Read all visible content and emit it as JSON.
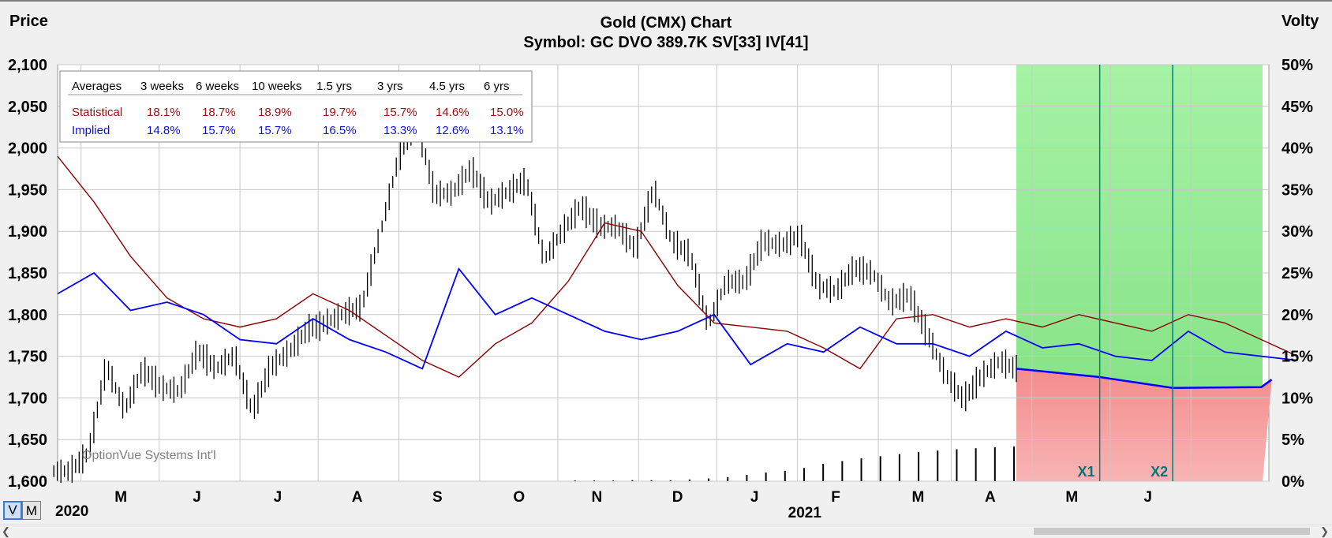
{
  "header": {
    "left_axis_label": "Price",
    "right_axis_label": "Volty",
    "title": "Gold (CMX) Chart",
    "subtitle": "Symbol: GC  DVO 389.7K  SV[33]  IV[41]"
  },
  "watermark": "OptionVue Systems Int'l",
  "mode_buttons": [
    {
      "label": "V",
      "active": true
    },
    {
      "label": "M",
      "active": false
    }
  ],
  "averages_table": {
    "header": [
      "Averages",
      "3 weeks",
      "6 weeks",
      "10 weeks",
      "1.5 yrs",
      "3 yrs",
      "4.5 yrs",
      "6 yrs"
    ],
    "rows": [
      {
        "label": "Statistical",
        "color": "#a01010",
        "values": [
          "18.1%",
          "18.7%",
          "18.9%",
          "19.7%",
          "15.7%",
          "14.6%",
          "15.0%"
        ]
      },
      {
        "label": "Implied",
        "color": "#1010e0",
        "values": [
          "14.8%",
          "15.7%",
          "15.7%",
          "16.5%",
          "13.3%",
          "12.6%",
          "13.1%"
        ]
      }
    ]
  },
  "colors": {
    "price_bars": "#000000",
    "statistical_vol": "#8b0000",
    "implied_vol": "#0000ff",
    "forecast_up": "#90ee90",
    "forecast_down": "#f4a0a0",
    "expiration_line": "#008080",
    "grid": "#c8c8c8"
  },
  "chart_data": {
    "type": "line",
    "title": "Gold (CMX) Chart",
    "subtitle": "Symbol: GC  DVO 389.7K  SV[33]  IV[41]",
    "left_axis": {
      "label": "Price",
      "range": [
        1600,
        2100
      ],
      "ticks": [
        "1,600",
        "1,650",
        "1,700",
        "1,750",
        "1,800",
        "1,850",
        "1,900",
        "1,950",
        "2,000",
        "2,050",
        "2,100"
      ]
    },
    "right_axis": {
      "label": "Volty",
      "range": [
        0,
        50
      ],
      "ticks": [
        "0%",
        "5%",
        "10%",
        "15%",
        "20%",
        "25%",
        "30%",
        "35%",
        "40%",
        "45%",
        "50%"
      ]
    },
    "x_axis": {
      "month_labels": [
        "M",
        "J",
        "J",
        "A",
        "S",
        "O",
        "N",
        "D",
        "J",
        "F",
        "M",
        "A",
        "M",
        "J"
      ],
      "year_labels": [
        "2020",
        "2021"
      ],
      "start": "2020-03-23",
      "last_data": "2021-03-26",
      "end": "2021-07-02"
    },
    "grid": true,
    "expirations": [
      {
        "label": "X1",
        "date": "2021-04-27"
      },
      {
        "label": "X2",
        "date": "2021-05-25"
      }
    ],
    "series": [
      {
        "name": "Price",
        "kind": "weekly_close",
        "points": [
          [
            "2020-03-27",
            1612
          ],
          [
            "2020-04-03",
            1633
          ],
          [
            "2020-04-10",
            1738
          ],
          [
            "2020-04-17",
            1686
          ],
          [
            "2020-04-24",
            1735
          ],
          [
            "2020-05-01",
            1713
          ],
          [
            "2020-05-08",
            1708
          ],
          [
            "2020-05-15",
            1756
          ],
          [
            "2020-05-22",
            1735
          ],
          [
            "2020-05-29",
            1751
          ],
          [
            "2020-06-05",
            1684
          ],
          [
            "2020-06-12",
            1737
          ],
          [
            "2020-06-19",
            1755
          ],
          [
            "2020-06-26",
            1781
          ],
          [
            "2020-07-03",
            1790
          ],
          [
            "2020-07-10",
            1801
          ],
          [
            "2020-07-17",
            1810
          ],
          [
            "2020-07-24",
            1897
          ],
          [
            "2020-07-31",
            1986
          ],
          [
            "2020-08-07",
            2035
          ],
          [
            "2020-08-14",
            1944
          ],
          [
            "2020-08-21",
            1947
          ],
          [
            "2020-08-28",
            1975
          ],
          [
            "2020-09-04",
            1934
          ],
          [
            "2020-09-11",
            1947
          ],
          [
            "2020-09-18",
            1962
          ],
          [
            "2020-09-25",
            1866
          ],
          [
            "2020-10-02",
            1900
          ],
          [
            "2020-10-09",
            1930
          ],
          [
            "2020-10-16",
            1906
          ],
          [
            "2020-10-23",
            1905
          ],
          [
            "2020-10-30",
            1879
          ],
          [
            "2020-11-06",
            1951
          ],
          [
            "2020-11-13",
            1888
          ],
          [
            "2020-11-20",
            1872
          ],
          [
            "2020-11-27",
            1788
          ],
          [
            "2020-12-04",
            1840
          ],
          [
            "2020-12-11",
            1839
          ],
          [
            "2020-12-18",
            1888
          ],
          [
            "2020-12-25",
            1883
          ],
          [
            "2021-01-01",
            1895
          ],
          [
            "2021-01-08",
            1835
          ],
          [
            "2021-01-15",
            1828
          ],
          [
            "2021-01-22",
            1856
          ],
          [
            "2021-01-29",
            1850
          ],
          [
            "2021-02-05",
            1813
          ],
          [
            "2021-02-12",
            1824
          ],
          [
            "2021-02-19",
            1777
          ],
          [
            "2021-02-26",
            1728
          ],
          [
            "2021-03-05",
            1698
          ],
          [
            "2021-03-12",
            1727
          ],
          [
            "2021-03-19",
            1744
          ],
          [
            "2021-03-26",
            1733
          ]
        ]
      },
      {
        "name": "Statistical",
        "kind": "volatility_pct",
        "points": [
          [
            "2020-03-23",
            39.0
          ],
          [
            "2020-04-06",
            33.5
          ],
          [
            "2020-04-20",
            27.0
          ],
          [
            "2020-05-04",
            22.0
          ],
          [
            "2020-05-18",
            19.5
          ],
          [
            "2020-06-01",
            18.5
          ],
          [
            "2020-06-15",
            19.5
          ],
          [
            "2020-06-29",
            22.5
          ],
          [
            "2020-07-13",
            20.5
          ],
          [
            "2020-07-27",
            17.5
          ],
          [
            "2020-08-10",
            14.5
          ],
          [
            "2020-08-24",
            12.5
          ],
          [
            "2020-09-07",
            16.5
          ],
          [
            "2020-09-21",
            19.0
          ],
          [
            "2020-10-05",
            24.0
          ],
          [
            "2020-10-19",
            31.0
          ],
          [
            "2020-11-02",
            30.0
          ],
          [
            "2020-11-16",
            23.5
          ],
          [
            "2020-11-30",
            19.0
          ],
          [
            "2020-12-14",
            18.5
          ],
          [
            "2020-12-28",
            18.0
          ],
          [
            "2021-01-11",
            16.0
          ],
          [
            "2021-01-25",
            13.5
          ],
          [
            "2021-02-08",
            19.5
          ],
          [
            "2021-02-22",
            20.0
          ],
          [
            "2021-03-08",
            18.5
          ],
          [
            "2021-03-22",
            19.5
          ],
          [
            "2021-04-05",
            18.5
          ],
          [
            "2021-04-19",
            20.0
          ],
          [
            "2021-05-03",
            19.0
          ],
          [
            "2021-05-17",
            18.0
          ],
          [
            "2021-05-31",
            20.0
          ],
          [
            "2021-06-14",
            19.0
          ],
          [
            "2021-06-28",
            17.0
          ],
          [
            "2021-07-12",
            15.0
          ]
        ]
      },
      {
        "name": "Implied",
        "kind": "volatility_pct",
        "points": [
          [
            "2020-03-23",
            22.5
          ],
          [
            "2020-04-06",
            25.0
          ],
          [
            "2020-04-20",
            20.5
          ],
          [
            "2020-05-04",
            21.5
          ],
          [
            "2020-05-18",
            20.0
          ],
          [
            "2020-06-01",
            17.0
          ],
          [
            "2020-06-15",
            16.5
          ],
          [
            "2020-06-29",
            19.5
          ],
          [
            "2020-07-13",
            17.0
          ],
          [
            "2020-07-27",
            15.5
          ],
          [
            "2020-08-10",
            13.5
          ],
          [
            "2020-08-24",
            25.5
          ],
          [
            "2020-09-07",
            20.0
          ],
          [
            "2020-09-21",
            22.0
          ],
          [
            "2020-10-05",
            20.0
          ],
          [
            "2020-10-19",
            18.0
          ],
          [
            "2020-11-02",
            17.0
          ],
          [
            "2020-11-16",
            18.0
          ],
          [
            "2020-11-30",
            20.0
          ],
          [
            "2020-12-14",
            14.0
          ],
          [
            "2020-12-28",
            16.5
          ],
          [
            "2021-01-11",
            15.5
          ],
          [
            "2021-01-25",
            18.5
          ],
          [
            "2021-02-08",
            16.5
          ],
          [
            "2021-02-22",
            16.5
          ],
          [
            "2021-03-08",
            15.0
          ],
          [
            "2021-03-22",
            18.0
          ],
          [
            "2021-04-05",
            16.0
          ],
          [
            "2021-04-19",
            16.5
          ],
          [
            "2021-05-03",
            15.0
          ],
          [
            "2021-05-17",
            14.5
          ],
          [
            "2021-05-31",
            18.0
          ],
          [
            "2021-06-14",
            15.5
          ],
          [
            "2021-06-28",
            15.0
          ],
          [
            "2021-07-12",
            14.5
          ]
        ]
      },
      {
        "name": "Forecast",
        "kind": "volatility_pct",
        "points": [
          [
            "2021-03-26",
            13.5
          ],
          [
            "2021-04-27",
            12.5
          ],
          [
            "2021-05-25",
            11.2
          ],
          [
            "2021-06-28",
            11.3
          ],
          [
            "2021-07-02",
            12.2
          ]
        ]
      },
      {
        "name": "Volume",
        "kind": "relative_bars",
        "values": [
          0.0,
          0.0,
          0.0,
          0.0,
          0.0,
          0.02,
          0.02,
          0.02,
          0.03,
          0.03,
          0.03,
          0.05,
          0.08,
          0.12,
          0.18,
          0.25,
          0.3,
          0.38,
          0.5,
          0.58,
          0.66,
          0.72,
          0.78,
          0.84,
          0.88,
          0.92,
          0.95,
          0.98,
          1.0
        ]
      }
    ]
  }
}
